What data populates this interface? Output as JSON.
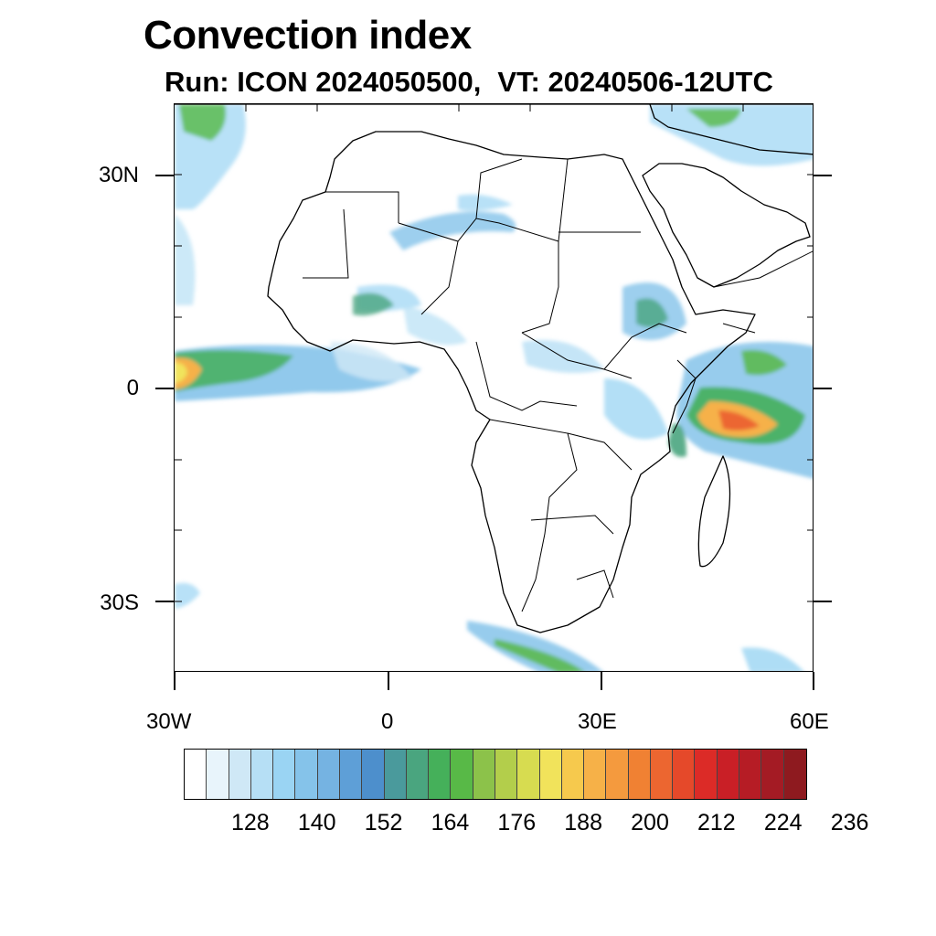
{
  "title": "Convection index",
  "subtitle_run": "Run: ICON 2024050500,",
  "subtitle_vt": "VT: 20240506-12UTC",
  "map": {
    "extent": {
      "lon_min": -30,
      "lon_max": 60,
      "lat_min": -40,
      "lat_max": 40
    },
    "lat_labels": [
      "30N",
      "0",
      "30S"
    ],
    "lon_labels": [
      "30W",
      "0",
      "30E",
      "60E"
    ],
    "coastline_color": "#000000"
  },
  "colorbar": {
    "labels": [
      "128",
      "140",
      "152",
      "164",
      "176",
      "188",
      "200",
      "212",
      "224",
      "236"
    ],
    "colors": [
      "#ffffff",
      "#e8f4fb",
      "#cfe8f6",
      "#b6dff5",
      "#9ad4f3",
      "#85c3ea",
      "#75b3e2",
      "#5e9fd7",
      "#4d8fcc",
      "#4a9a9c",
      "#4aa57f",
      "#45b05a",
      "#58b947",
      "#8cc24a",
      "#b3ce4b",
      "#d7dc50",
      "#f1e35b",
      "#f6c94d",
      "#f6b148",
      "#f49a3e",
      "#f08133",
      "#ec6630",
      "#e5492a",
      "#dc2b27",
      "#c91f26",
      "#b61c25",
      "#a41b24",
      "#8e1a1f"
    ]
  }
}
